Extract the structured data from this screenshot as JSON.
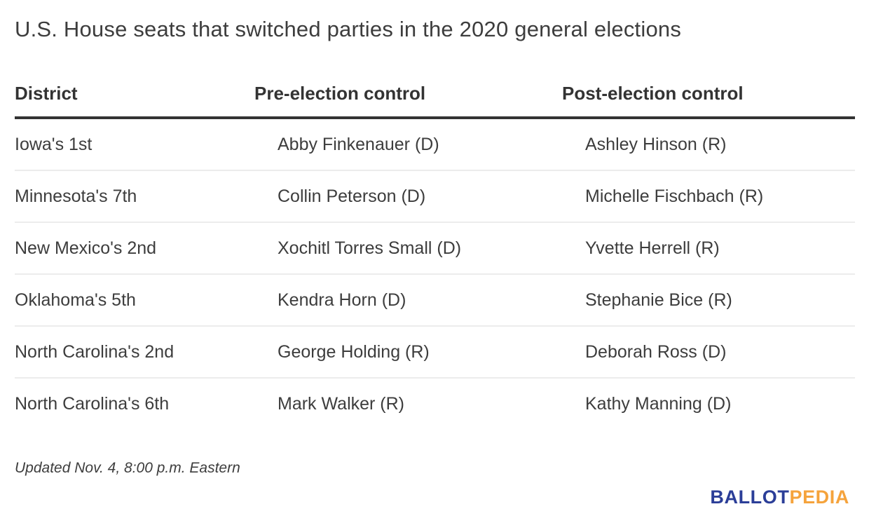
{
  "title": "U.S. House seats that switched parties in the 2020 general elections",
  "chart_data": {
    "type": "table",
    "title": "U.S. House seats that switched parties in the 2020 general elections",
    "columns": [
      "District",
      "Pre-election control",
      "Post-election control"
    ],
    "rows": [
      {
        "district": "Iowa's 1st",
        "pre": "Abby Finkenauer (D)",
        "post": "Ashley Hinson (R)"
      },
      {
        "district": "Minnesota's 7th",
        "pre": "Collin Peterson (D)",
        "post": "Michelle Fischbach (R)"
      },
      {
        "district": "New Mexico's 2nd",
        "pre": "Xochitl Torres Small (D)",
        "post": "Yvette Herrell (R)"
      },
      {
        "district": "Oklahoma's 5th",
        "pre": "Kendra Horn (D)",
        "post": "Stephanie Bice (R)"
      },
      {
        "district": "North Carolina's 2nd",
        "pre": "George Holding (R)",
        "post": "Deborah Ross (D)"
      },
      {
        "district": "North Carolina's 6th",
        "pre": "Mark Walker (R)",
        "post": "Kathy Manning (D)"
      }
    ]
  },
  "table": {
    "columns": [
      "District",
      "Pre-election control",
      "Post-election control"
    ],
    "rows": [
      {
        "district": "Iowa's 1st",
        "pre": "Abby Finkenauer (D)",
        "post": "Ashley Hinson (R)"
      },
      {
        "district": "Minnesota's 7th",
        "pre": "Collin Peterson (D)",
        "post": "Michelle Fischbach (R)"
      },
      {
        "district": "New Mexico's 2nd",
        "pre": "Xochitl Torres Small (D)",
        "post": "Yvette Herrell (R)"
      },
      {
        "district": "Oklahoma's 5th",
        "pre": "Kendra Horn (D)",
        "post": "Stephanie Bice (R)"
      },
      {
        "district": "North Carolina's 2nd",
        "pre": "George Holding (R)",
        "post": "Deborah Ross (D)"
      },
      {
        "district": "North Carolina's 6th",
        "pre": "Mark Walker (R)",
        "post": "Kathy Manning (D)"
      }
    ]
  },
  "footer": {
    "updated": "Updated Nov. 4, 8:00 p.m. Eastern"
  },
  "logo": {
    "ballot": "BALLOT",
    "pedia": "PEDIA",
    "ballot_color": "#2b3e98",
    "pedia_color": "#f5a33c"
  }
}
